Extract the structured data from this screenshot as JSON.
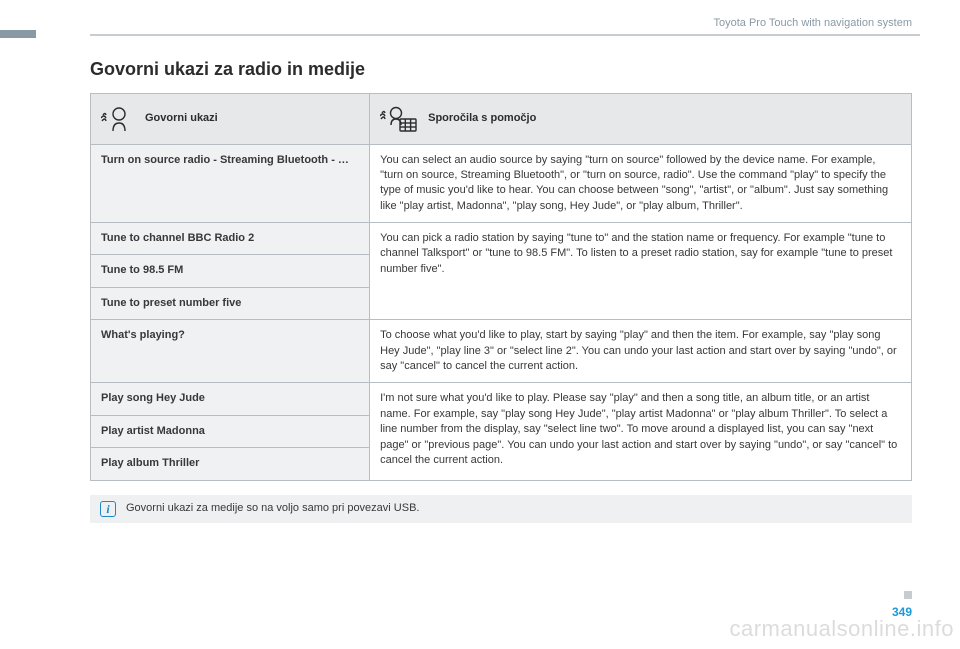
{
  "colors": {
    "side_bar": "#8a9aa5",
    "hr": "#c7ccd0",
    "header_text": "#8a9aa5",
    "cell_border": "#b7bdc2",
    "th_bg": "#e6e8ea",
    "cmd_bg": "#f0f1f3",
    "help_bg": "#ffffff",
    "note_bg": "#eef0f2",
    "info_blue": "#1e88c9",
    "page_num": "#1a9bd7",
    "text": "#383838",
    "watermark": "rgba(0,0,0,0.14)"
  },
  "typography": {
    "base_size_pt": 8,
    "title_size_pt": 14,
    "font_family": "Arial"
  },
  "header": {
    "section_label": "Toyota Pro Touch with navigation system"
  },
  "title": "Govorni ukazi za radio in medije",
  "table": {
    "type": "table",
    "columns": [
      {
        "label": "Govorni ukazi",
        "icon": "voice-head-icon",
        "width_pct": 34
      },
      {
        "label": "Sporočila s pomočjo",
        "icon": "voice-keypad-icon",
        "width_pct": 66
      }
    ],
    "rows": [
      {
        "commands": [
          "Turn on source radio - Streaming Bluetooth - …"
        ],
        "help": "You can select an audio source by saying \"turn on source\" followed by the device name. For example, \"turn on source, Streaming Bluetooth\", or \"turn on source, radio\". Use the command \"play\" to specify the type of music you'd like to hear. You can choose between \"song\", \"artist\", or \"album\". Just say something like \"play artist, Madonna\", \"play song, Hey Jude\", or \"play album, Thriller\"."
      },
      {
        "commands": [
          "Tune to channel BBC Radio 2",
          "Tune to 98.5 FM",
          "Tune to preset number five"
        ],
        "help": "You can pick a radio station by saying \"tune to\" and the station name or frequency. For example \"tune to channel Talksport\" or \"tune to 98.5 FM\". To listen to a preset radio station, say for example \"tune to preset number five\"."
      },
      {
        "commands": [
          "What's playing?"
        ],
        "help": "To choose what you'd like to play, start by saying \"play\" and then the item. For example, say \"play song Hey Jude\", \"play line 3\" or \"select line 2\". You can undo your last action and start over by saying \"undo\", or say \"cancel\" to cancel the current action."
      },
      {
        "commands": [
          "Play song Hey Jude",
          "Play artist Madonna",
          "Play album Thriller"
        ],
        "help": "I'm not sure what you'd like to play. Please say \"play\" and then a song title, an album title, or an artist name. For example, say \"play song Hey Jude\", \"play artist Madonna\" or \"play album Thriller\". To select a line number from the display, say \"select line two\". To move around a displayed list, you can say \"next page\" or \"previous page\". You can undo your last action and start over by saying \"undo\", or say \"cancel\" to cancel the current action."
      }
    ]
  },
  "note": "Govorni ukazi za medije so na voljo samo pri povezavi USB.",
  "page_number": "349",
  "watermark": "carmanualsonline.info"
}
